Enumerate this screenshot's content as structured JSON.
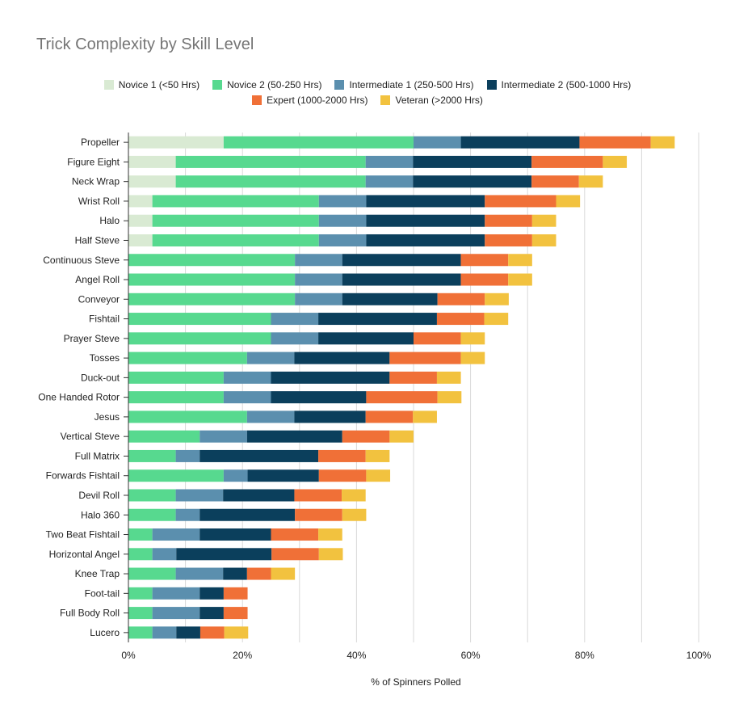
{
  "chart_data": {
    "type": "bar",
    "orientation": "horizontal",
    "stacked": true,
    "title": "Trick Complexity by Skill Level",
    "xlabel": "% of Spinners Polled",
    "ylabel": "",
    "xlim": [
      0,
      100
    ],
    "x_ticks": [
      "0%",
      "20%",
      "40%",
      "60%",
      "80%",
      "100%"
    ],
    "grid": "vertical",
    "legend_position": "top",
    "categories": [
      "Propeller",
      "Figure Eight",
      "Neck Wrap",
      "Wrist Roll",
      "Halo",
      "Half Steve",
      "Continuous Steve",
      "Angel Roll",
      "Conveyor",
      "Fishtail",
      "Prayer Steve",
      "Tosses",
      "Duck-out",
      "One Handed Rotor",
      "Jesus",
      "Vertical Steve",
      "Full Matrix",
      "Forwards Fishtail",
      "Devil Roll",
      "Halo 360",
      "Two Beat Fishtail",
      "Horizontal Angel",
      "Knee Trap",
      "Foot-tail",
      "Full Body Roll",
      "Lucero"
    ],
    "series": [
      {
        "name": "Novice 1 (<50 Hrs)",
        "color": "#d9ead3",
        "values": [
          16.7,
          8.3,
          8.3,
          4.2,
          4.2,
          4.2,
          0,
          0,
          0,
          0,
          0,
          0,
          0,
          0,
          0,
          0,
          0,
          0,
          0,
          0,
          0,
          0,
          0,
          0,
          0,
          0
        ]
      },
      {
        "name": "Novice 2 (50-250 Hrs)",
        "color": "#57d98f",
        "values": [
          33.3,
          33.3,
          33.3,
          29.2,
          29.2,
          29.2,
          29.2,
          29.2,
          29.2,
          25.0,
          25.0,
          20.8,
          16.7,
          16.7,
          20.8,
          12.5,
          8.3,
          16.7,
          8.3,
          8.3,
          4.2,
          4.2,
          8.3,
          4.2,
          4.2,
          4.2
        ]
      },
      {
        "name": "Intermediate 1 (250-500 Hrs)",
        "color": "#5b8fae",
        "values": [
          8.3,
          8.3,
          8.3,
          8.3,
          8.3,
          8.3,
          8.3,
          8.3,
          8.3,
          8.3,
          8.3,
          8.3,
          8.3,
          8.3,
          8.3,
          8.3,
          4.2,
          4.2,
          8.3,
          4.2,
          8.3,
          4.2,
          8.3,
          8.3,
          8.3,
          4.2
        ]
      },
      {
        "name": "Intermediate 2 (500-1000 Hrs)",
        "color": "#0b3f5c",
        "values": [
          20.8,
          20.8,
          20.8,
          20.8,
          20.8,
          20.8,
          20.8,
          20.8,
          16.7,
          20.8,
          16.7,
          16.7,
          20.8,
          16.7,
          12.5,
          16.7,
          20.8,
          12.5,
          12.5,
          16.7,
          12.5,
          16.7,
          4.2,
          4.2,
          4.2,
          4.2
        ]
      },
      {
        "name": "Expert (1000-2000 Hrs)",
        "color": "#f07037",
        "values": [
          12.5,
          12.5,
          8.3,
          12.5,
          8.3,
          8.3,
          8.3,
          8.3,
          8.3,
          8.3,
          8.3,
          12.5,
          8.3,
          12.5,
          8.3,
          8.3,
          8.3,
          8.3,
          8.3,
          8.3,
          8.3,
          8.3,
          4.2,
          4.2,
          4.2,
          4.2
        ]
      },
      {
        "name": "Veteran (>2000 Hrs)",
        "color": "#f2c23f",
        "values": [
          4.2,
          4.2,
          4.2,
          4.2,
          4.2,
          4.2,
          4.2,
          4.2,
          4.2,
          4.2,
          4.2,
          4.2,
          4.2,
          4.2,
          4.2,
          4.2,
          4.2,
          4.2,
          4.2,
          4.2,
          4.2,
          4.2,
          4.2,
          0,
          0,
          4.2
        ]
      }
    ]
  }
}
